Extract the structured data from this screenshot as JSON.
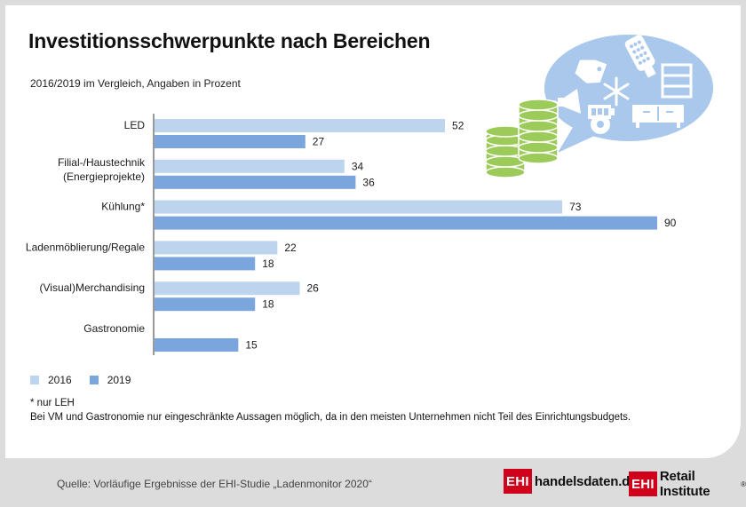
{
  "title": "Investitionsschwerpunkte nach Bereichen",
  "subtitle": "2016/2019 im Vergleich, Angaben in Prozent",
  "colors": {
    "c2016": "#bdd4ee",
    "c2019": "#7aa6dd",
    "bubble": "#a9c8ec",
    "coins": "#9ccb5a",
    "brand": "#d0021b"
  },
  "chart_data": {
    "type": "bar",
    "orientation": "horizontal",
    "categories": [
      "LED",
      "Filial-/Haustechnik\n(Energieprojekte)",
      "Kühlung*",
      "Ladenmöblierung/Regale",
      "(Visual)Merchandising",
      "Gastronomie"
    ],
    "series": [
      {
        "name": "2016",
        "values": [
          52,
          34,
          73,
          22,
          26,
          null
        ]
      },
      {
        "name": "2019",
        "values": [
          27,
          36,
          90,
          18,
          18,
          15
        ]
      }
    ],
    "xlim": [
      0,
      100
    ],
    "grid": false
  },
  "legend": {
    "items": [
      {
        "label": "2016"
      },
      {
        "label": "2019"
      }
    ]
  },
  "notes": {
    "line1": "* nur LEH",
    "line2": "Bei VM und Gastronomie nur eingeschränkte Aussagen möglich, da in den meisten Unternehmen nicht Teil des Einrichtungsbudgets."
  },
  "source": "Quelle: Vorläufige Ergebnisse der EHI-Studie „Ladenmonitor 2020“",
  "logos": {
    "logo1_box": "EHI",
    "logo1_text": "handelsdaten.de",
    "logo2_box": "EHI",
    "logo2_text": "Retail Institute",
    "logo2_reg": "®"
  },
  "icons": [
    "coins-icon",
    "speech-bubble-icon",
    "price-tag-icon",
    "led-bulb-icon",
    "snowflake-icon",
    "shelf-icon",
    "megaphone-icon",
    "battery-icon",
    "gear-icon",
    "sideboard-icon"
  ]
}
